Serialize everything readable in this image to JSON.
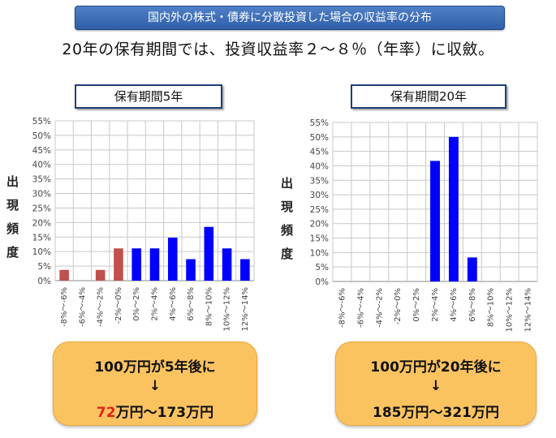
{
  "banner": "国内外の株式・債券に分散投資した場合の収益率の分布",
  "headline": "20年の保有期間では、投資収益率２～８％（年率）に収斂。",
  "y_axis_label": [
    "出",
    "現",
    "頻",
    "度"
  ],
  "colors": {
    "negative": "#c0504d",
    "positive": "#0000ff",
    "grid": "#c8c8c8",
    "box": "#fbc360"
  },
  "chart_data": [
    {
      "type": "bar",
      "title": "保有期間5年",
      "categories": [
        "-8%～-6%",
        "-6%～-4%",
        "-4%～-2%",
        "-2%～0%",
        "0%～2%",
        "2%～4%",
        "4%～6%",
        "6%～8%",
        "8%～10%",
        "10%～12%",
        "12%～14%"
      ],
      "values": [
        3.7,
        0,
        3.7,
        11.1,
        11.1,
        11.1,
        14.8,
        7.4,
        18.5,
        11.1,
        7.4
      ],
      "bar_colors": [
        "negative",
        "negative",
        "negative",
        "negative",
        "positive",
        "positive",
        "positive",
        "positive",
        "positive",
        "positive",
        "positive"
      ],
      "ylim": [
        0,
        55
      ],
      "yticks": [
        "0%",
        "5%",
        "10%",
        "15%",
        "20%",
        "25%",
        "30%",
        "35%",
        "40%",
        "45%",
        "50%",
        "55%"
      ],
      "xlabel": "",
      "ylabel": "出現頻度",
      "grid": true
    },
    {
      "type": "bar",
      "title": "保有期間20年",
      "categories": [
        "-8%～-6%",
        "-6%～-4%",
        "-4%～-2%",
        "-2%～0%",
        "0%～2%",
        "2%～4%",
        "4%～6%",
        "6%～8%",
        "8%～10%",
        "10%～12%",
        "12%～14%"
      ],
      "values": [
        0,
        0,
        0,
        0,
        0,
        41.7,
        50.0,
        8.3,
        0,
        0,
        0
      ],
      "bar_colors": [
        "positive",
        "positive",
        "positive",
        "positive",
        "positive",
        "positive",
        "positive",
        "positive",
        "positive",
        "positive",
        "positive"
      ],
      "ylim": [
        0,
        55
      ],
      "yticks": [
        "0%",
        "5%",
        "10%",
        "15%",
        "20%",
        "25%",
        "30%",
        "35%",
        "40%",
        "45%",
        "50%",
        "55%"
      ],
      "xlabel": "",
      "ylabel": "出現頻度",
      "grid": true
    }
  ],
  "results": [
    {
      "line1": "100万円が5年後に",
      "arrow": "↓",
      "low": "72",
      "high_text": "万円～173万円"
    },
    {
      "line1": "100万円が20年後に",
      "arrow": "↓",
      "low": "185",
      "high_text": "万円～321万円"
    }
  ]
}
